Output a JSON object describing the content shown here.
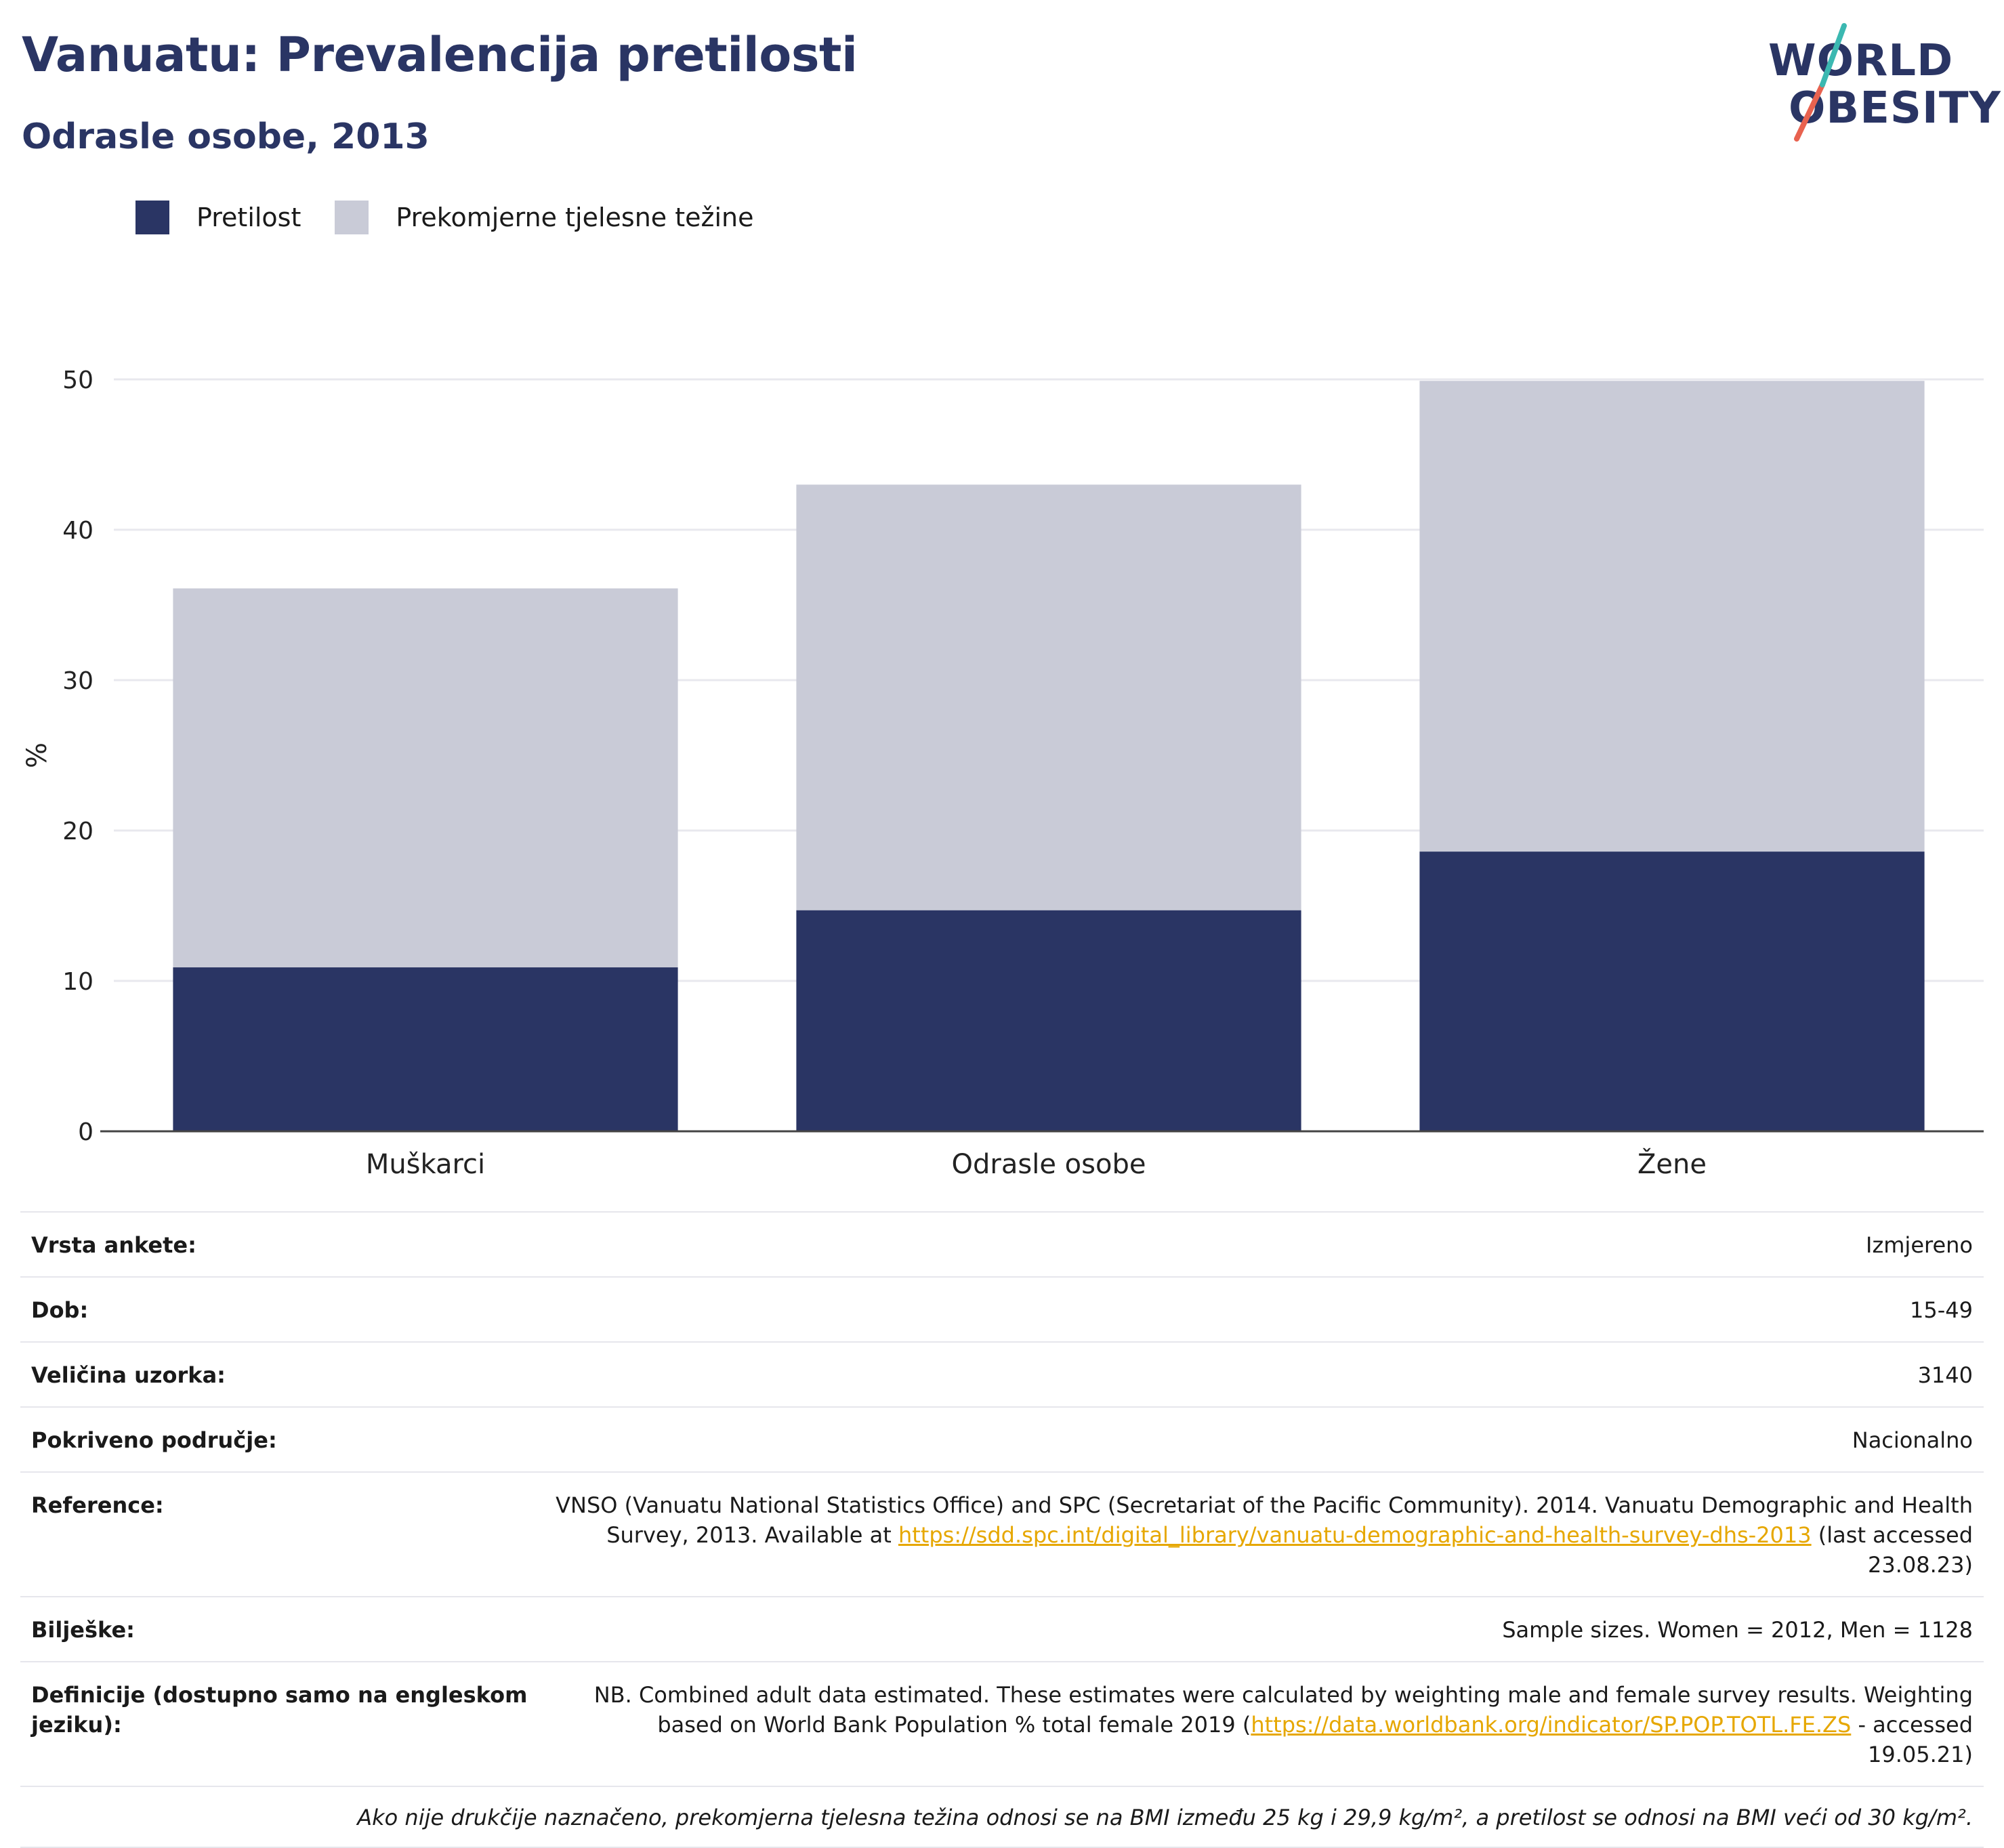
{
  "header": {
    "title": "Vanuatu: Prevalencija pretilosti",
    "subtitle": "Odrasle osobe, 2013"
  },
  "logo": {
    "line1": "WORLD",
    "line2": "OBESITY",
    "accent_colors": [
      "#3bb8b1",
      "#e8624f"
    ]
  },
  "colors": {
    "obesity": "#2a3564",
    "overweight": "#c9cbd7",
    "title": "#2a3564",
    "link": "#e6a700"
  },
  "legend": {
    "items": [
      {
        "label": "Pretilost",
        "color": "#2a3564"
      },
      {
        "label": "Prekomjerne tjelesne težine",
        "color": "#c9cbd7"
      }
    ]
  },
  "chart_data": {
    "type": "bar",
    "stacked": true,
    "categories": [
      "Muškarci",
      "Odrasle osobe",
      "Žene"
    ],
    "series": [
      {
        "name": "Pretilost",
        "values": [
          10.9,
          14.7,
          18.6
        ]
      },
      {
        "name": "Prekomjerne tjelesne težine",
        "values": [
          25.2,
          28.3,
          31.3
        ]
      }
    ],
    "ylabel": "%",
    "ylim": [
      0,
      50
    ],
    "yticks": [
      0,
      10,
      20,
      30,
      40,
      50
    ],
    "grid": true,
    "legend_position": "top-left"
  },
  "meta": {
    "survey_type": {
      "label": "Vrsta ankete:",
      "value": "Izmjereno"
    },
    "age": {
      "label": "Dob:",
      "value": "15-49"
    },
    "sample": {
      "label": "Veličina uzorka:",
      "value": "3140"
    },
    "coverage": {
      "label": "Pokriveno područje:",
      "value": "Nacionalno"
    },
    "reference": {
      "label": "Reference:",
      "text_before": "VNSO (Vanuatu National Statistics Office) and SPC (Secretariat of the Pacific Community). 2014. Vanuatu Demographic and Health Survey, 2013. Available at ",
      "link": "https://sdd.spc.int/digital_library/vanuatu-demographic-and-health-survey-dhs-2013",
      "text_after": " (last accessed 23.08.23)"
    },
    "notes": {
      "label": "Bilješke:",
      "value": "Sample sizes. Women = 2012, Men = 1128"
    },
    "definitions": {
      "label": "Definicije (dostupno samo na engleskom jeziku):",
      "text_before": "NB. Combined adult data estimated. These estimates were calculated by weighting male and female survey results. Weighting based on World Bank Population % total female 2019 (",
      "link": "https://data.worldbank.org/indicator/SP.POP.TOTL.FE.ZS",
      "text_after": " - accessed 19.05.21)"
    },
    "footnote": "Ako nije drukčije naznačeno, prekomjerna tjelesna težina odnosi se na BMI između 25 kg i 29,9 kg/m², a pretilost se odnosi na BMI veći od 30 kg/m²."
  }
}
